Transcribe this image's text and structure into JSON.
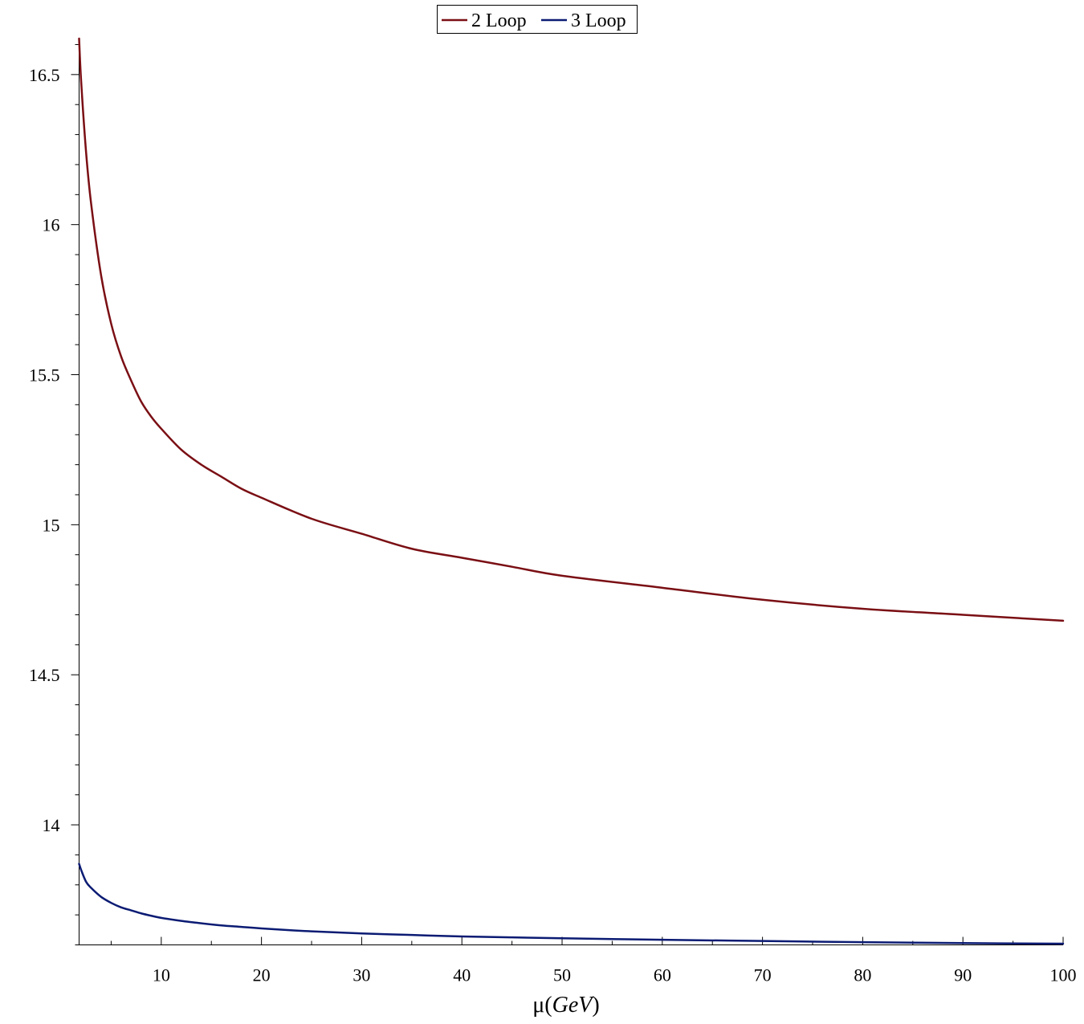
{
  "chart_data": {
    "type": "line",
    "title": "",
    "xlabel": {
      "prefix": "μ(",
      "unit": "GeV",
      "suffix": ")"
    },
    "ylabel": "",
    "xlim": [
      1.8,
      100
    ],
    "ylim": [
      13.6,
      16.62
    ],
    "x_ticks": [
      10,
      20,
      30,
      40,
      50,
      60,
      70,
      80,
      90,
      100
    ],
    "x_tick_labels": [
      "10",
      "20",
      "30",
      "40",
      "50",
      "60",
      "70",
      "80",
      "90",
      "100"
    ],
    "y_ticks": [
      14,
      14.5,
      15,
      15.5,
      16,
      16.5
    ],
    "y_tick_labels": [
      "14",
      "14.5",
      "15",
      "15.5",
      "16",
      "16.5"
    ],
    "x_minor_step": 5,
    "y_minor_step": 0.1,
    "grid": false,
    "legend": {
      "placement": "top-center",
      "frame": true
    },
    "series": [
      {
        "name": "2 Loop",
        "color": "#7a0f14",
        "x": [
          1.8,
          2,
          2.5,
          3,
          4,
          5,
          6,
          7,
          8,
          9,
          10,
          12,
          14,
          16,
          18,
          20,
          25,
          30,
          35,
          40,
          45,
          50,
          60,
          70,
          80,
          90,
          100
        ],
        "y": [
          16.62,
          16.48,
          16.24,
          16.07,
          15.83,
          15.67,
          15.56,
          15.48,
          15.41,
          15.36,
          15.32,
          15.25,
          15.2,
          15.16,
          15.12,
          15.09,
          15.02,
          14.97,
          14.92,
          14.89,
          14.86,
          14.83,
          14.79,
          14.75,
          14.72,
          14.7,
          14.68
        ]
      },
      {
        "name": "3 Loop",
        "color": "#0b1b73",
        "x": [
          1.8,
          2,
          2.5,
          3,
          4,
          5,
          6,
          7,
          8,
          9,
          10,
          12,
          14,
          16,
          18,
          20,
          25,
          30,
          35,
          40,
          45,
          50,
          60,
          70,
          80,
          90,
          100
        ],
        "y": [
          13.87,
          13.85,
          13.81,
          13.79,
          13.76,
          13.74,
          13.725,
          13.715,
          13.705,
          13.697,
          13.69,
          13.68,
          13.672,
          13.665,
          13.66,
          13.655,
          13.645,
          13.638,
          13.633,
          13.628,
          13.625,
          13.622,
          13.617,
          13.613,
          13.609,
          13.606,
          13.604
        ]
      }
    ]
  }
}
